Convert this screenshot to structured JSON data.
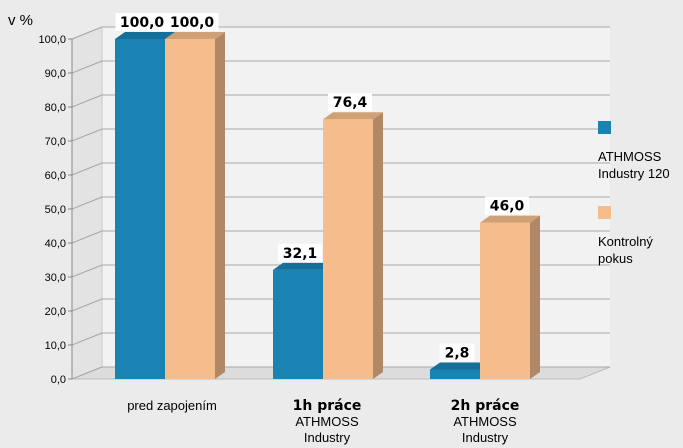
{
  "chart_data": {
    "type": "bar",
    "ylabel": "v %",
    "ylim": [
      0,
      100
    ],
    "yticks": [
      "0,0",
      "10,0",
      "20,0",
      "30,0",
      "40,0",
      "50,0",
      "60,0",
      "70,0",
      "80,0",
      "90,0",
      "100,0"
    ],
    "grid": true,
    "legend_position": "right",
    "categories": [
      {
        "lines": [
          "pred zapojením"
        ]
      },
      {
        "bold": "1h práce",
        "lines": [
          "ATHMOSS",
          "Industry"
        ]
      },
      {
        "bold": "2h práce",
        "lines": [
          "ATHMOSS",
          "Industry"
        ]
      }
    ],
    "series": [
      {
        "name_lines": [
          "ATHMOSS",
          "Industry 120"
        ],
        "color": "#1a83b3",
        "values": [
          100.0,
          32.1,
          2.8
        ],
        "labels": [
          "100,0",
          "32,1",
          "2,8"
        ]
      },
      {
        "name_lines": [
          "Kontrolný",
          "pokus"
        ],
        "color": "#f5bd8c",
        "values": [
          100.0,
          76.4,
          46.0
        ],
        "labels": [
          "100,0",
          "76,4",
          "46,0"
        ]
      }
    ]
  }
}
